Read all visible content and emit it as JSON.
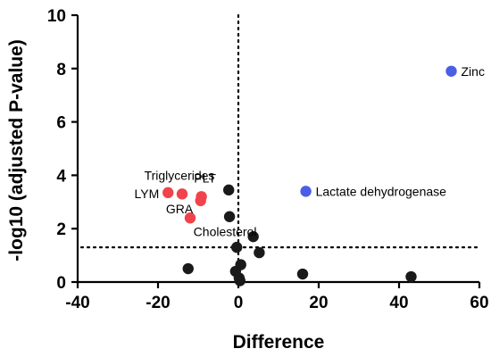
{
  "chart_data": {
    "type": "scatter",
    "title": "",
    "xlabel": "Difference",
    "ylabel": "-log10 (adjusted P-value)",
    "xlim": [
      -40,
      60
    ],
    "ylim": [
      0,
      10
    ],
    "xticks": [
      "-40",
      "-20",
      "0",
      "20",
      "40",
      "60"
    ],
    "yticks": [
      "0",
      "2",
      "4",
      "6",
      "8",
      "10"
    ],
    "reference_lines": {
      "x": 0,
      "y": 1.3
    },
    "colors": {
      "red": "#f0434b",
      "blue": "#4a5fe6",
      "black": "#1a1a1a"
    },
    "points": [
      {
        "x": 53,
        "y": 7.9,
        "color": "blue",
        "label": "Zinc"
      },
      {
        "x": 16.8,
        "y": 3.4,
        "color": "blue",
        "label": "Lactate dehydrogenase"
      },
      {
        "x": -17.5,
        "y": 3.35,
        "color": "red",
        "label": "LYM"
      },
      {
        "x": -14,
        "y": 3.3,
        "color": "red",
        "label": "Triglycerides"
      },
      {
        "x": -9.2,
        "y": 3.2,
        "color": "red",
        "label": "PLT"
      },
      {
        "x": -9.4,
        "y": 3.05,
        "color": "red",
        "label": ""
      },
      {
        "x": -12,
        "y": 2.4,
        "color": "red",
        "label": "GRA"
      },
      {
        "x": -2.4,
        "y": 3.45,
        "color": "black",
        "label": ""
      },
      {
        "x": -2.2,
        "y": 2.45,
        "color": "black",
        "label": "Cholesterol"
      },
      {
        "x": 3.7,
        "y": 1.7,
        "color": "black",
        "label": ""
      },
      {
        "x": -0.4,
        "y": 1.3,
        "color": "black",
        "label": ""
      },
      {
        "x": 5.2,
        "y": 1.1,
        "color": "black",
        "label": ""
      },
      {
        "x": -12.5,
        "y": 0.5,
        "color": "black",
        "label": ""
      },
      {
        "x": 0.6,
        "y": 0.65,
        "color": "black",
        "label": ""
      },
      {
        "x": -0.7,
        "y": 0.4,
        "color": "black",
        "label": ""
      },
      {
        "x": 0.2,
        "y": 0.15,
        "color": "black",
        "label": ""
      },
      {
        "x": 0.4,
        "y": 0.05,
        "color": "black",
        "label": ""
      },
      {
        "x": 16,
        "y": 0.3,
        "color": "black",
        "label": ""
      },
      {
        "x": 43,
        "y": 0.2,
        "color": "black",
        "label": ""
      }
    ]
  }
}
